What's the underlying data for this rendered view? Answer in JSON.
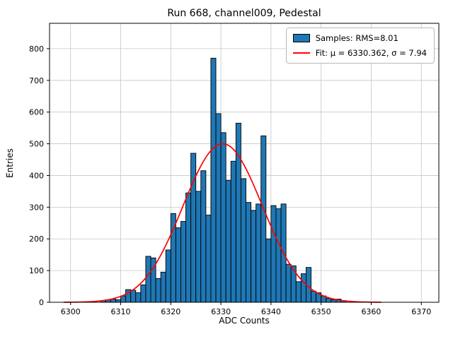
{
  "chart_data": {
    "type": "bar",
    "title": "Run 668, channel009, Pedestal",
    "xlabel": "ADC Counts",
    "ylabel": "Entries",
    "bin_start": 6306,
    "bin_width": 1,
    "values": [
      5,
      8,
      10,
      8,
      20,
      40,
      38,
      30,
      55,
      145,
      140,
      75,
      95,
      165,
      280,
      235,
      255,
      345,
      470,
      350,
      415,
      275,
      770,
      595,
      535,
      385,
      445,
      565,
      390,
      315,
      290,
      310,
      525,
      200,
      305,
      295,
      310,
      120,
      115,
      65,
      90,
      110,
      35,
      30,
      20,
      12,
      8,
      10,
      5
    ],
    "fit": {
      "mu": 6330.362,
      "sigma": 7.94,
      "amplitude": 500
    },
    "legend": [
      {
        "label": "Samples: RMS=8.01",
        "type": "patch"
      },
      {
        "label": "Fit: μ = 6330.362, σ = 7.94",
        "type": "line"
      }
    ],
    "x_ticks": [
      6300,
      6310,
      6320,
      6330,
      6340,
      6350,
      6360,
      6370
    ],
    "y_ticks": [
      0,
      100,
      200,
      300,
      400,
      500,
      600,
      700,
      800
    ],
    "xlim": [
      6295.8,
      6373.5
    ],
    "ylim": [
      0,
      880
    ],
    "grid": true,
    "legend_position": "upper right",
    "colors": {
      "bar": "#1f77b4",
      "bar_edge": "#000000",
      "fit": "#ff0000",
      "grid": "#c6c6c6",
      "spine": "#000000"
    }
  }
}
